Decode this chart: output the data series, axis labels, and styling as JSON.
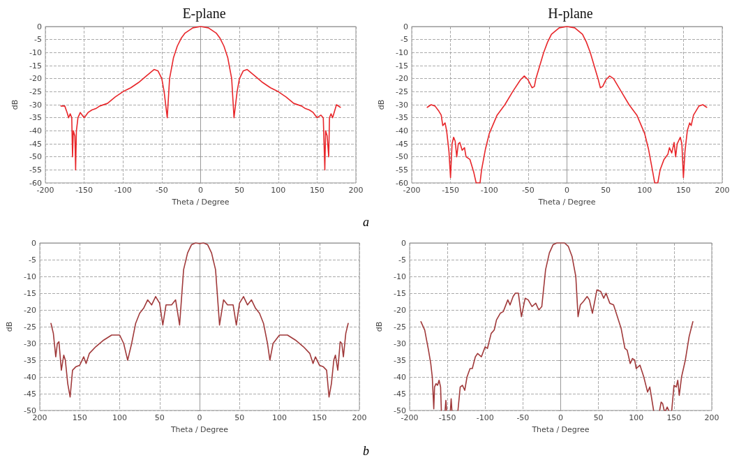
{
  "chart_data": [
    {
      "type": "line",
      "title": "E-plane",
      "xlabel": "Theta / Degree",
      "ylabel": "dB",
      "annotations": [
        "a"
      ],
      "xlim": [
        -200,
        200
      ],
      "xticks": [
        -200,
        -150,
        -100,
        -50,
        0,
        50,
        100,
        150,
        200
      ],
      "ylim": [
        -60,
        0
      ],
      "yticks": [
        -60,
        -55,
        -50,
        -45,
        -40,
        -35,
        -30,
        -25,
        -20,
        -15,
        -10,
        -5,
        0
      ],
      "grid": true,
      "series": [
        {
          "color": "#e8262a",
          "x": [
            -180,
            -175,
            -172,
            -170,
            -168,
            -166,
            -165,
            -164,
            -162,
            -161,
            -160,
            -158,
            -155,
            -150,
            -145,
            -140,
            -135,
            -130,
            -120,
            -110,
            -100,
            -90,
            -80,
            -70,
            -60,
            -55,
            -50,
            -47,
            -45,
            -43,
            -42,
            -40,
            -35,
            -30,
            -25,
            -20,
            -10,
            0,
            10,
            20,
            25,
            30,
            35,
            40,
            42,
            43,
            45,
            47,
            50,
            55,
            60,
            70,
            80,
            90,
            100,
            110,
            120,
            130,
            135,
            140,
            145,
            150,
            155,
            158,
            160,
            161,
            163,
            165,
            166,
            168,
            170,
            172,
            175,
            180
          ],
          "values": [
            -30.5,
            -30.5,
            -33,
            -35,
            -33.5,
            -35,
            -50,
            -40,
            -42,
            -55,
            -40,
            -35,
            -33,
            -35,
            -33,
            -32,
            -31.5,
            -30.5,
            -29.5,
            -27,
            -25,
            -23.5,
            -21.5,
            -19,
            -16.5,
            -17,
            -20,
            -25,
            -30,
            -35,
            -30,
            -20,
            -12,
            -7.5,
            -4.5,
            -2.5,
            -0.5,
            0,
            -0.5,
            -2.5,
            -4.5,
            -7.5,
            -12,
            -20,
            -30,
            -35,
            -30,
            -25,
            -20,
            -17,
            -16.5,
            -19,
            -21.5,
            -23.5,
            -25,
            -27,
            -29.5,
            -30.5,
            -31.5,
            -32,
            -33,
            -35,
            -34,
            -35,
            -55,
            -40,
            -42,
            -50,
            -35,
            -33.5,
            -35,
            -33,
            -30,
            -31
          ]
        }
      ]
    },
    {
      "type": "line",
      "title": "H-plane",
      "xlabel": "Theta / Degree",
      "ylabel": "dB",
      "xlim": [
        -200,
        200
      ],
      "xticks": [
        -200,
        -150,
        -100,
        -50,
        0,
        50,
        100,
        150,
        200
      ],
      "ylim": [
        -60,
        0
      ],
      "yticks": [
        -60,
        -55,
        -50,
        -45,
        -40,
        -35,
        -30,
        -25,
        -20,
        -15,
        -10,
        -5,
        0
      ],
      "grid": true,
      "series": [
        {
          "color": "#e8262a",
          "x": [
            -180,
            -175,
            -170,
            -165,
            -162,
            -160,
            -157,
            -155,
            -152,
            -150,
            -148,
            -146,
            -144,
            -142,
            -140,
            -138,
            -135,
            -132,
            -130,
            -125,
            -120,
            -117,
            -112,
            -110,
            -105,
            -100,
            -90,
            -80,
            -70,
            -60,
            -55,
            -50,
            -45,
            -42,
            -40,
            -35,
            -30,
            -25,
            -20,
            -10,
            0,
            10,
            20,
            25,
            30,
            35,
            40,
            43,
            46,
            50,
            55,
            60,
            70,
            80,
            90,
            100,
            105,
            110,
            113,
            117,
            120,
            125,
            130,
            132,
            135,
            138,
            140,
            142,
            146,
            148,
            150,
            152,
            155,
            158,
            160,
            163,
            166,
            170,
            175,
            180
          ],
          "values": [
            -31,
            -30,
            -30.5,
            -32.5,
            -34,
            -38,
            -37,
            -40,
            -48,
            -58,
            -45,
            -42.5,
            -44,
            -50,
            -45,
            -44.5,
            -47.5,
            -46.5,
            -50,
            -51,
            -56,
            -60,
            -60,
            -55,
            -47,
            -41,
            -34,
            -30,
            -25,
            -20.5,
            -19,
            -20.5,
            -23.5,
            -23,
            -20,
            -15,
            -10,
            -6,
            -3,
            -0.5,
            0,
            -0.5,
            -3,
            -6,
            -10,
            -15,
            -20,
            -23.5,
            -23,
            -20.5,
            -19,
            -20,
            -25,
            -30,
            -34,
            -41,
            -47,
            -55,
            -60,
            -60,
            -55,
            -51,
            -49,
            -46.5,
            -48.5,
            -44.5,
            -50,
            -45,
            -42.5,
            -45,
            -58,
            -48,
            -40,
            -37,
            -38,
            -34,
            -32.5,
            -30.5,
            -30,
            -31
          ]
        }
      ]
    },
    {
      "type": "line",
      "xlabel": "Theta / Degree",
      "ylabel": "dB",
      "annotations": [
        "b"
      ],
      "xlim": [
        -200,
        200
      ],
      "xticks": [
        {
          "value": -200,
          "label": "200"
        },
        {
          "value": -150,
          "label": "150"
        },
        {
          "value": -100,
          "label": "100"
        },
        {
          "value": -50,
          "label": "50"
        },
        0,
        50,
        100,
        150,
        200
      ],
      "ylim": [
        -50,
        0
      ],
      "yticks": [
        -50,
        -45,
        -40,
        -35,
        -30,
        -25,
        -20,
        -15,
        -10,
        -5,
        0
      ],
      "grid": true,
      "series": [
        {
          "color": "#a0393a",
          "x": [
            -186,
            -183,
            -180,
            -178,
            -176,
            -173,
            -170,
            -168,
            -165,
            -162,
            -159,
            -155,
            -150,
            -145,
            -142,
            -138,
            -130,
            -120,
            -110,
            -100,
            -95,
            -90,
            -85,
            -80,
            -75,
            -70,
            -65,
            -60,
            -55,
            -50,
            -46,
            -42,
            -35,
            -30,
            -25,
            -20,
            -15,
            -10,
            -5,
            0,
            5,
            10,
            15,
            20,
            25,
            30,
            35,
            42,
            46,
            50,
            55,
            60,
            65,
            70,
            75,
            80,
            85,
            88,
            92,
            100,
            110,
            120,
            130,
            138,
            142,
            145,
            150,
            155,
            159,
            162,
            165,
            168,
            170,
            173,
            176,
            178,
            180,
            183,
            186
          ],
          "values": [
            -24,
            -27,
            -34,
            -30,
            -29.5,
            -38,
            -33.5,
            -35,
            -42,
            -46,
            -38,
            -37,
            -36.5,
            -34,
            -36,
            -33,
            -31,
            -29,
            -27.5,
            -27.5,
            -30,
            -35,
            -30,
            -24,
            -21,
            -19.5,
            -17,
            -18.5,
            -16,
            -18,
            -24.5,
            -18.5,
            -18.5,
            -17,
            -24.5,
            -8,
            -3,
            -0.5,
            0,
            -0.2,
            0,
            -0.5,
            -3,
            -8,
            -24.5,
            -17,
            -18.5,
            -18.5,
            -24.5,
            -18,
            -16,
            -18.5,
            -17,
            -19.5,
            -21,
            -24,
            -30,
            -35,
            -30,
            -27.5,
            -27.5,
            -29,
            -31,
            -33,
            -36,
            -34,
            -36.5,
            -37,
            -38,
            -46,
            -42,
            -35,
            -33.5,
            -38,
            -29.5,
            -30,
            -34,
            -27,
            -24
          ]
        }
      ]
    },
    {
      "type": "line",
      "xlabel": "Theta / Degree",
      "ylabel": "dB",
      "xlim": [
        -200,
        200
      ],
      "xticks": [
        -200,
        -150,
        -100,
        -50,
        0,
        50,
        100,
        150,
        200
      ],
      "ylim": [
        -50,
        0
      ],
      "yticks": [
        -50,
        -45,
        -40,
        -35,
        -30,
        -25,
        -20,
        -15,
        -10,
        -5,
        0
      ],
      "grid": true,
      "series": [
        {
          "color": "#a0393a",
          "x": [
            -185,
            -180,
            -175,
            -172,
            -170,
            -168,
            -167,
            -165,
            -163,
            -161,
            -159,
            -158,
            -155,
            -153,
            -152,
            -151,
            -148,
            -146,
            -145,
            -144,
            -140,
            -136,
            -133,
            -130,
            -127,
            -124,
            -120,
            -117,
            -113,
            -110,
            -105,
            -100,
            -97,
            -92,
            -88,
            -85,
            -80,
            -76,
            -70,
            -67,
            -63,
            -60,
            -56,
            -52,
            -47,
            -43,
            -38,
            -33,
            -29,
            -25,
            -20,
            -15,
            -10,
            -5,
            0,
            5,
            10,
            15,
            20,
            23,
            26,
            30,
            35,
            38,
            42,
            48,
            53,
            57,
            60,
            65,
            70,
            75,
            80,
            85,
            88,
            92,
            95,
            98,
            100,
            105,
            110,
            115,
            118,
            123,
            127,
            131,
            133,
            135,
            137,
            139,
            141,
            143,
            145,
            147,
            150,
            153,
            155,
            157,
            160,
            165,
            170,
            175
          ],
          "values": [
            -23.5,
            -26,
            -32,
            -36,
            -40,
            -49.5,
            -43,
            -42,
            -42.5,
            -41,
            -43,
            -50,
            null,
            -50,
            -47,
            -50,
            null,
            -50,
            -46.5,
            -50,
            null,
            -50,
            -43,
            -42.5,
            -44,
            -40,
            -37.5,
            -37.5,
            -34,
            -33,
            -34,
            -31,
            -31.5,
            -27,
            -26,
            -23,
            -21,
            -20.5,
            -17,
            -18.5,
            -16,
            -15,
            -15,
            -22,
            -16.5,
            -17,
            -19,
            -18,
            -20,
            -19,
            -8,
            -3,
            -0.5,
            0,
            0,
            0,
            -1,
            -4,
            -10,
            -22,
            -18.5,
            -17.5,
            -16,
            -17,
            -21,
            -14,
            -14.5,
            -16.5,
            -15,
            -18,
            -18.5,
            -22,
            -25.5,
            -31.5,
            -32,
            -36,
            -34.5,
            -35,
            -37.5,
            -36.5,
            -40,
            -44.5,
            -43,
            -50,
            null,
            -50,
            -47.5,
            -48,
            -50,
            -50,
            -49,
            -50,
            null,
            -50,
            -42.5,
            -43,
            -41,
            -45.5,
            -40,
            -35,
            -28,
            -23.5
          ]
        }
      ]
    }
  ]
}
